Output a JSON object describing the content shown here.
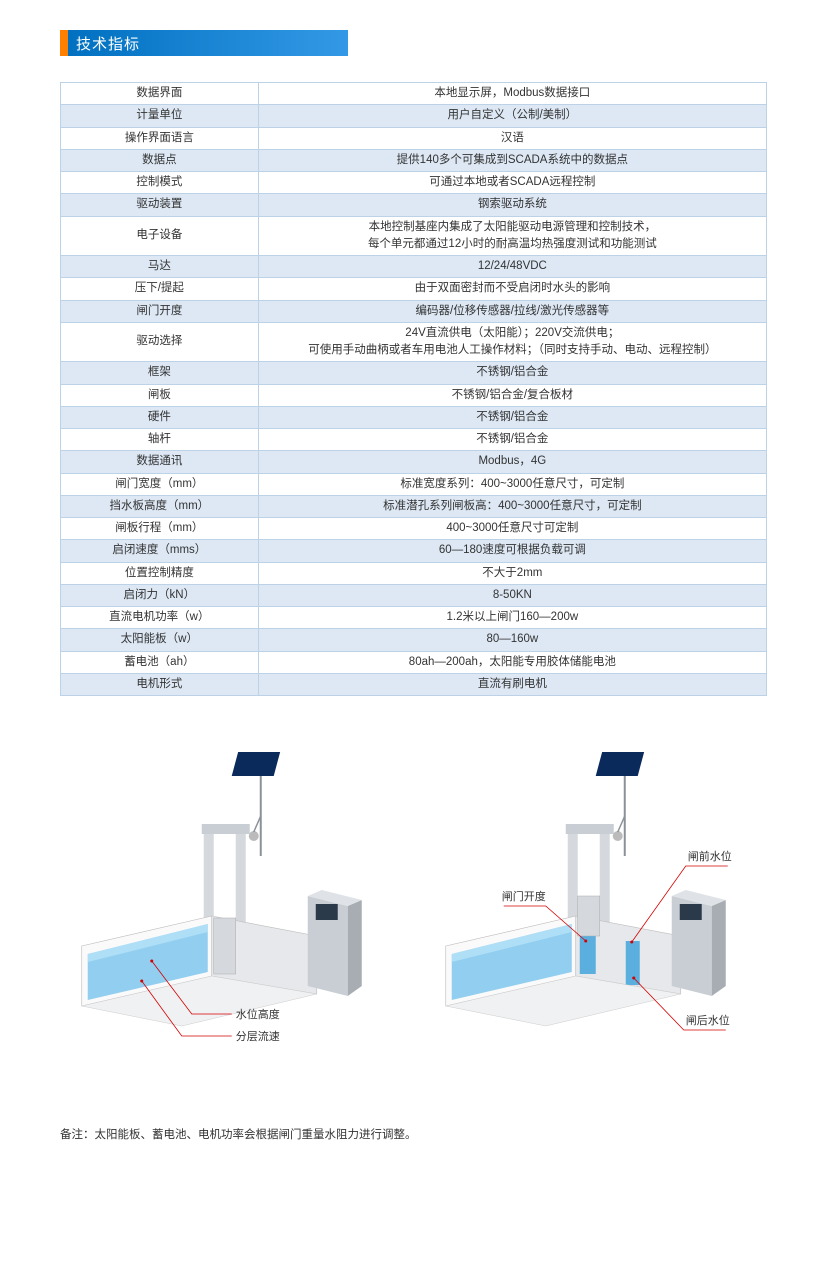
{
  "title": "技术指标",
  "spec_rows": [
    {
      "label": "数据界面",
      "value": "本地显示屏，Modbus数据接口",
      "shade": false
    },
    {
      "label": "计量单位",
      "value": "用户自定义（公制/美制）",
      "shade": true
    },
    {
      "label": "操作界面语言",
      "value": "汉语",
      "shade": false
    },
    {
      "label": "数据点",
      "value": "提供140多个可集成到SCADA系统中的数据点",
      "shade": true
    },
    {
      "label": "控制模式",
      "value": "可通过本地或者SCADA远程控制",
      "shade": false
    },
    {
      "label": "驱动装置",
      "value": "钢索驱动系统",
      "shade": true
    },
    {
      "label": "电子设备",
      "value": "本地控制基座内集成了太阳能驱动电源管理和控制技术，\n每个单元都通过12小时的耐高温均热强度测试和功能测试",
      "shade": false
    },
    {
      "label": "马达",
      "value": "12/24/48VDC",
      "shade": true
    },
    {
      "label": "压下/提起",
      "value": "由于双面密封而不受启闭时水头的影响",
      "shade": false
    },
    {
      "label": "闸门开度",
      "value": "编码器/位移传感器/拉线/激光传感器等",
      "shade": true
    },
    {
      "label": "驱动选择",
      "value": "24V直流供电（太阳能）；220V交流供电；\n可使用手动曲柄或者车用电池人工操作材料；（同时支持手动、电动、远程控制）",
      "shade": false
    },
    {
      "label": "框架",
      "value": "不锈钢/铝合金",
      "shade": true
    },
    {
      "label": "闸板",
      "value": "不锈钢/铝合金/复合板材",
      "shade": false
    },
    {
      "label": "硬件",
      "value": "不锈钢/铝合金",
      "shade": true
    },
    {
      "label": "轴杆",
      "value": "不锈钢/铝合金",
      "shade": false
    },
    {
      "label": "数据通讯",
      "value": "Modbus，4G",
      "shade": true
    },
    {
      "label": "闸门宽度（mm）",
      "value": "标准宽度系列：400~3000任意尺寸，可定制",
      "shade": false
    },
    {
      "label": "挡水板高度（mm）",
      "value": "标准潜孔系列闸板高：400~3000任意尺寸，可定制",
      "shade": true
    },
    {
      "label": "闸板行程（mm）",
      "value": "400~3000任意尺寸可定制",
      "shade": false
    },
    {
      "label": "启闭速度（mms）",
      "value": "60—180速度可根据负载可调",
      "shade": true
    },
    {
      "label": "位置控制精度",
      "value": "不大于2mm",
      "shade": false
    },
    {
      "label": "启闭力（kN）",
      "value": "8-50KN",
      "shade": true
    },
    {
      "label": "直流电机功率（w）",
      "value": "1.2米以上闸门160—200w",
      "shade": false
    },
    {
      "label": "太阳能板（w）",
      "value": "80—160w",
      "shade": true
    },
    {
      "label": "蓄电池（ah）",
      "value": "80ah—200ah，太阳能专用胶体储能电池",
      "shade": false
    },
    {
      "label": "电机形式",
      "value": "直流有刷电机",
      "shade": true
    }
  ],
  "diagram": {
    "left_labels": {
      "water_level": "水位高度",
      "flow_layer": "分层流速"
    },
    "right_labels": {
      "gate_open": "闸门开度",
      "front_level": "闸前水位",
      "back_level": "闸后水位"
    },
    "colors": {
      "water": "#5fb8e8",
      "water_dark": "#2d8fc9",
      "frame": "#c9ced4",
      "frame_dark": "#8a9199",
      "solar": "#0a2a5c",
      "callout": "#d40000",
      "control_panel": "#b8bec5"
    }
  },
  "note": "备注：太阳能板、蓄电池、电机功率会根据闸门重量水阻力进行调整。"
}
